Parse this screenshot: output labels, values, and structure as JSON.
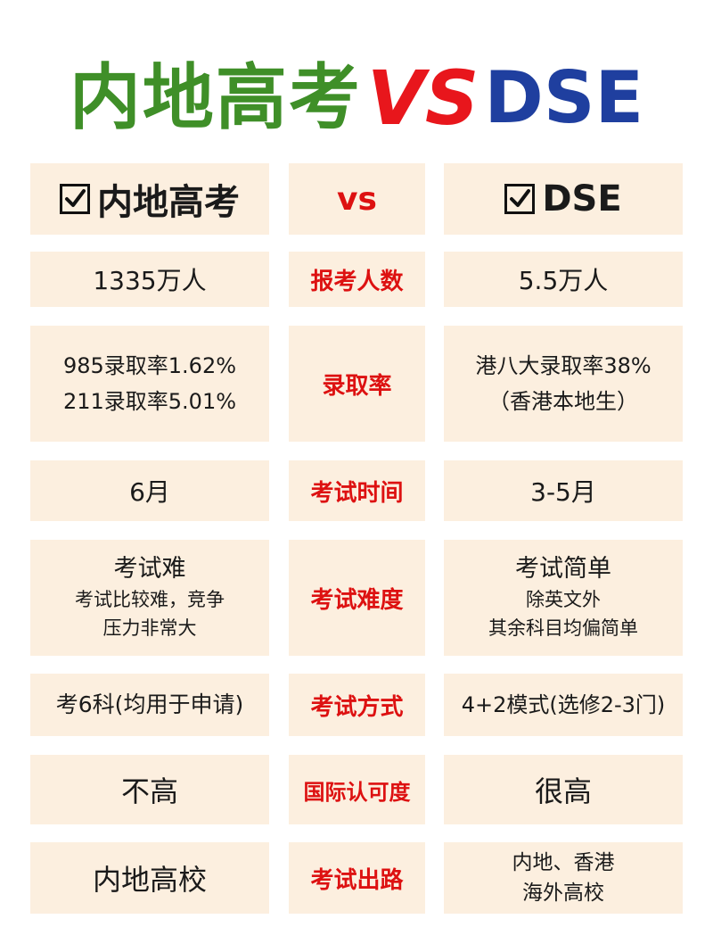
{
  "title": {
    "left": "内地高考",
    "vs": "VS",
    "right": "DSE"
  },
  "header": {
    "left": "内地高考",
    "mid": "vs",
    "right": "DSE",
    "check_icon": "checkbox-checked-icon"
  },
  "rows": [
    {
      "left_lines": [
        "1335万人"
      ],
      "mid": "报考人数",
      "right_lines": [
        "5.5万人"
      ]
    },
    {
      "left_lines": [
        "985录取率1.62%",
        "211录取率5.01%"
      ],
      "mid": "录取率",
      "right_lines": [
        "港八大录取率38%",
        "（香港本地生）"
      ]
    },
    {
      "left_lines": [
        "6月"
      ],
      "mid": "考试时间",
      "right_lines": [
        "3-5月"
      ]
    },
    {
      "left_head": "考试难",
      "left_lines": [
        "考试比较难，竞争",
        "压力非常大"
      ],
      "mid": "考试难度",
      "right_head": "考试简单",
      "right_lines": [
        "除英文外",
        "其余科目均偏简单"
      ]
    },
    {
      "left_lines": [
        "考6科(均用于申请)"
      ],
      "mid": "考试方式",
      "right_lines": [
        "4+2模式(选修2-3门)"
      ]
    },
    {
      "left_lines": [
        "不高"
      ],
      "mid": "国际认可度",
      "right_lines": [
        "很高"
      ]
    },
    {
      "left_lines": [
        "内地高校"
      ],
      "mid": "考试出路",
      "right_lines": [
        "内地、香港",
        "海外高校"
      ]
    }
  ],
  "colors": {
    "title_left": "#3f8f28",
    "title_vs": "#e8161c",
    "title_right": "#1f3f9f",
    "cell_bg": "#fcefdf",
    "mid_text": "#dd1111"
  }
}
